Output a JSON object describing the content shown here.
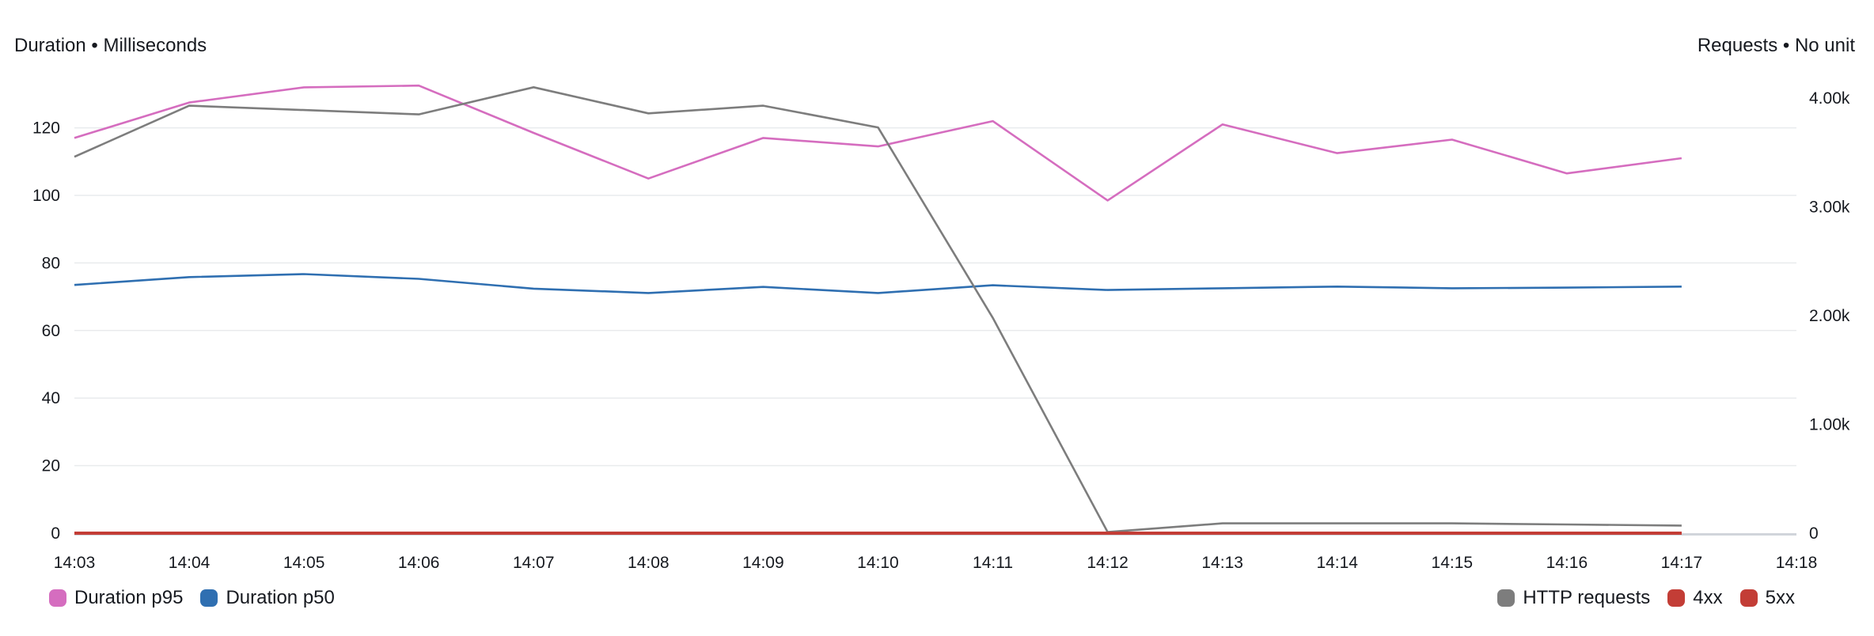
{
  "chart_data": {
    "type": "line",
    "title": "",
    "left_axis": {
      "label": "Duration • Milliseconds",
      "ylim": [
        0,
        135
      ],
      "ticks": [
        "0",
        "20",
        "40",
        "60",
        "80",
        "100",
        "120"
      ]
    },
    "right_axis": {
      "label": "Requests • No unit",
      "ylim": [
        0,
        4000
      ],
      "ticks": [
        "0",
        "1.00k",
        "2.00k",
        "3.00k",
        "4.00k"
      ]
    },
    "grid": true,
    "x_ticks": [
      "14:03",
      "14:04",
      "14:05",
      "14:06",
      "14:07",
      "14:08",
      "14:09",
      "14:10",
      "14:11",
      "14:12",
      "14:13",
      "14:14",
      "14:15",
      "14:16",
      "14:17",
      "14:18"
    ],
    "series": [
      {
        "name": "Duration p95",
        "axis": "left",
        "color": "#d56dbf",
        "values": [
          117,
          127.5,
          132,
          132.5,
          118.5,
          105,
          117,
          114.5,
          122,
          98.5,
          121,
          112.5,
          116.5,
          106.5,
          111
        ]
      },
      {
        "name": "Duration p50",
        "axis": "left",
        "color": "#2f6fb1",
        "values": [
          73.5,
          75.8,
          76.7,
          75.3,
          72.4,
          71.1,
          72.9,
          71.1,
          73.4,
          72.0,
          72.5,
          73.0,
          72.5,
          72.7,
          73.0
        ]
      },
      {
        "name": "HTTP requests",
        "axis": "right",
        "color": "#7d7d7d",
        "values": [
          3460,
          3930,
          3890,
          3850,
          4100,
          3860,
          3930,
          3730,
          1980,
          10,
          90,
          90,
          90,
          80,
          70
        ]
      },
      {
        "name": "4xx",
        "axis": "right",
        "color": "#c33d36",
        "values": [
          0,
          0,
          0,
          0,
          0,
          0,
          0,
          0,
          0,
          0,
          0,
          0,
          0,
          0,
          0
        ]
      },
      {
        "name": "5xx",
        "axis": "right",
        "color": "#c33d36",
        "values": [
          0,
          0,
          0,
          0,
          0,
          0,
          0,
          0,
          0,
          0,
          0,
          0,
          0,
          0,
          0
        ]
      }
    ],
    "legend": {
      "left": [
        "Duration p95",
        "Duration p50"
      ],
      "right": [
        "HTTP requests",
        "4xx",
        "5xx"
      ],
      "placement": "bottom"
    }
  }
}
